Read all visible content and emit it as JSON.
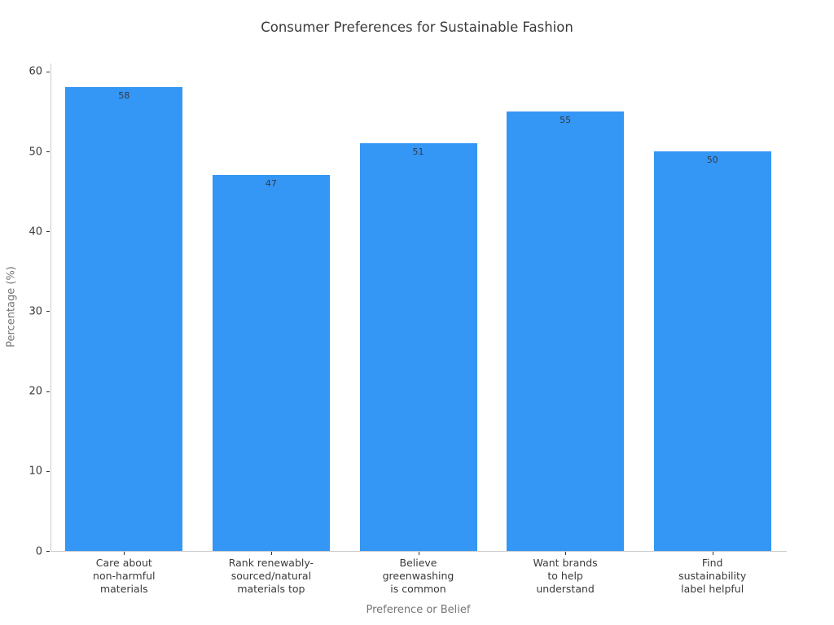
{
  "chart_data": {
    "type": "bar",
    "title": "Consumer Preferences for Sustainable Fashion",
    "xlabel": "Preference or Belief",
    "ylabel": "Percentage (%)",
    "categories": [
      "Care about\nnon-harmful\nmaterials",
      "Rank renewably-\nsourced/natural\nmaterials top",
      "Believe\ngreenwashing\nis common",
      "Want brands\nto help\nunderstand",
      "Find\nsustainability\nlabel helpful"
    ],
    "values": [
      58,
      47,
      51,
      55,
      50
    ],
    "value_labels": [
      "58",
      "47",
      "51",
      "55",
      "50"
    ],
    "yticks": [
      "0",
      "10",
      "20",
      "30",
      "40",
      "50",
      "60"
    ],
    "ytick_values": [
      0,
      10,
      20,
      30,
      40,
      50,
      60
    ],
    "ylim": [
      0,
      61
    ],
    "grid": false,
    "legend": null,
    "colors": {
      "background": "#ffffff",
      "bar": "#3496f5",
      "title_text": "#3a3a3a",
      "tick_label_text": "#3a3a3a",
      "axis_label_text": "#757575",
      "value_label_text": "#333b44",
      "spine": "#cccccc",
      "tick_mark": "#333333"
    }
  }
}
